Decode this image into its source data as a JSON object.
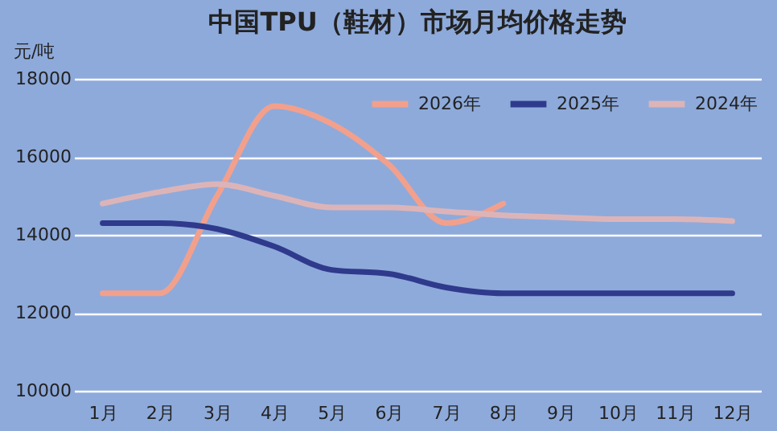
{
  "chart_data": {
    "type": "line",
    "title": "中国TPU（鞋材）市场月均价格走势",
    "ylabel": "元/吨",
    "categories": [
      "1月",
      "2月",
      "3月",
      "4月",
      "5月",
      "6月",
      "7月",
      "8月",
      "9月",
      "10月",
      "11月",
      "12月"
    ],
    "series": [
      {
        "name": "2026年",
        "color": "#f2a08c",
        "values": [
          12500,
          12500,
          15000,
          17300,
          16850,
          15800,
          14300,
          14800,
          null,
          null,
          null,
          null
        ]
      },
      {
        "name": "2025年",
        "color": "#2f3a8c",
        "values": [
          14300,
          14300,
          14150,
          13700,
          13100,
          13000,
          12650,
          12500,
          12500,
          12500,
          12500,
          12500
        ]
      },
      {
        "name": "2024年",
        "color": "#dcb4b8",
        "values": [
          14800,
          15100,
          15300,
          15000,
          14700,
          14700,
          14600,
          14500,
          14450,
          14400,
          14400,
          14350
        ]
      }
    ],
    "ylim": [
      10000,
      18000
    ],
    "yticks": [
      10000,
      12000,
      14000,
      16000,
      18000
    ],
    "grid": "y",
    "legend": "top right",
    "marker": "none",
    "line_style": "solid"
  }
}
